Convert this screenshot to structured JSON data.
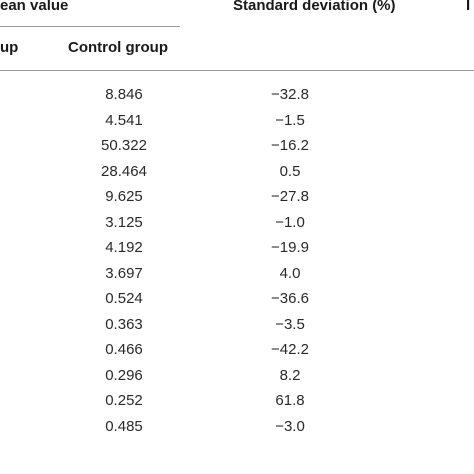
{
  "header": {
    "mean_value": "ean value",
    "standard_deviation": "Standard deviation (%)",
    "truncated_right": "I",
    "treatment_group": "up",
    "control_group": "Control group"
  },
  "rows": [
    {
      "control": "8.846",
      "sd": "−32.8"
    },
    {
      "control": "4.541",
      "sd": "−1.5"
    },
    {
      "control": "50.322",
      "sd": "−16.2"
    },
    {
      "control": "28.464",
      "sd": "0.5"
    },
    {
      "control": "9.625",
      "sd": "−27.8"
    },
    {
      "control": "3.125",
      "sd": "−1.0"
    },
    {
      "control": "4.192",
      "sd": "−19.9"
    },
    {
      "control": "3.697",
      "sd": "4.0"
    },
    {
      "control": "0.524",
      "sd": "−36.6"
    },
    {
      "control": "0.363",
      "sd": "−3.5"
    },
    {
      "control": "0.466",
      "sd": "−42.2"
    },
    {
      "control": "0.296",
      "sd": "8.2"
    },
    {
      "control": "0.252",
      "sd": "61.8"
    },
    {
      "control": "0.485",
      "sd": "−3.0"
    }
  ]
}
